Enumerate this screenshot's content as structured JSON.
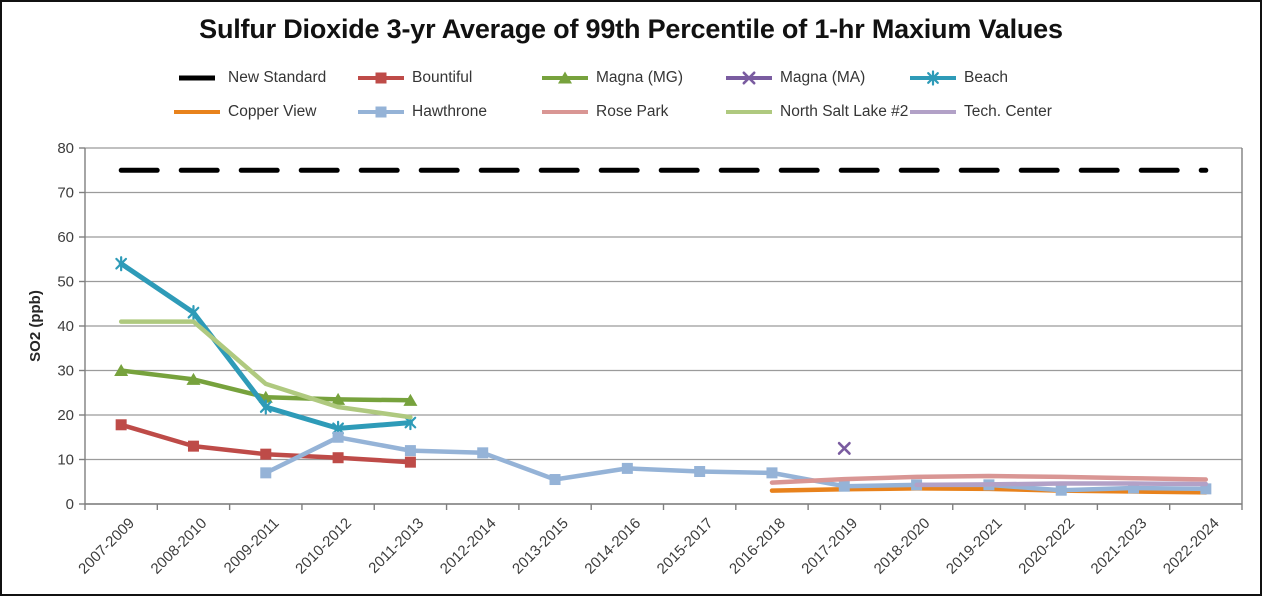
{
  "chart_data": {
    "type": "line",
    "title": "Sulfur Dioxide 3-yr Average of 99th Percentile of 1-hr Maxium Values",
    "xlabel": "",
    "ylabel": "SO2 (ppb)",
    "ylim": [
      0,
      80
    ],
    "ytick_step": 10,
    "grid": true,
    "legend_position": "top",
    "categories": [
      "2007-2009",
      "2008-2010",
      "2009-2011",
      "2010-2012",
      "2011-2013",
      "2012-2014",
      "2013-2015",
      "2014-2016",
      "2015-2017",
      "2016-2018",
      "2017-2019",
      "2018-2020",
      "2019-2021",
      "2020-2022",
      "2021-2023",
      "2022-2024"
    ],
    "series": [
      {
        "name": "New Standard",
        "color": "#000000",
        "marker": "none",
        "width": 5,
        "dash": [
          36,
          24
        ],
        "values": [
          75,
          75,
          75,
          75,
          75,
          75,
          75,
          75,
          75,
          75,
          75,
          75,
          75,
          75,
          75,
          75
        ]
      },
      {
        "name": "Bountiful",
        "color": "#BE4B48",
        "marker": "square",
        "width": 4.5,
        "values": [
          17.8,
          13,
          11.2,
          10.4,
          9.4,
          null,
          null,
          null,
          null,
          null,
          null,
          null,
          null,
          null,
          null,
          null
        ]
      },
      {
        "name": "Magna (MG)",
        "color": "#77A23D",
        "marker": "triangle",
        "width": 4.5,
        "values": [
          30,
          28,
          24,
          23.5,
          23.3,
          null,
          null,
          null,
          null,
          null,
          null,
          null,
          null,
          null,
          null,
          null
        ]
      },
      {
        "name": "Magna (MA)",
        "color": "#7A5CA0",
        "marker": "x",
        "width": 3,
        "values": [
          null,
          null,
          null,
          null,
          null,
          null,
          null,
          null,
          null,
          null,
          12.5,
          null,
          null,
          null,
          null,
          null
        ]
      },
      {
        "name": "Beach",
        "color": "#2E9BB8",
        "marker": "asterisk",
        "width": 5,
        "values": [
          54,
          43,
          21.8,
          17,
          18.3,
          null,
          null,
          null,
          null,
          null,
          null,
          null,
          null,
          null,
          null,
          null
        ]
      },
      {
        "name": "Copper View",
        "color": "#E8821C",
        "marker": "none",
        "width": 4.5,
        "values": [
          null,
          null,
          null,
          null,
          null,
          null,
          null,
          null,
          null,
          3,
          3.3,
          3.5,
          3.4,
          3,
          2.8,
          2.6
        ]
      },
      {
        "name": "Hawthrone",
        "color": "#95B3D7",
        "marker": "square",
        "width": 4.5,
        "values": [
          null,
          null,
          7,
          15,
          12,
          11.5,
          5.5,
          8,
          7.3,
          7,
          4,
          4.3,
          4.3,
          3.1,
          3.6,
          3.4
        ]
      },
      {
        "name": "Rose Park",
        "color": "#D99694",
        "marker": "none",
        "width": 4.5,
        "values": [
          null,
          null,
          null,
          null,
          null,
          null,
          null,
          null,
          null,
          4.8,
          5.6,
          6.1,
          6.3,
          6.1,
          5.8,
          5.5
        ]
      },
      {
        "name": "North Salt Lake #2",
        "color": "#AFC97F",
        "marker": "none",
        "width": 4.5,
        "values": [
          41,
          41,
          27,
          21.8,
          19.5,
          null,
          null,
          null,
          null,
          null,
          null,
          null,
          null,
          null,
          null,
          null
        ]
      },
      {
        "name": "Tech. Center",
        "color": "#B2A1C7",
        "marker": "none",
        "width": 4.5,
        "values": [
          null,
          null,
          null,
          null,
          null,
          null,
          null,
          null,
          null,
          null,
          null,
          4.3,
          4.4,
          4.6,
          4.6,
          4.5
        ]
      }
    ],
    "legend_rows": [
      [
        "New Standard",
        "Bountiful",
        "Magna (MG)",
        "Magna (MA)",
        "Beach"
      ],
      [
        "Copper View",
        "Hawthrone",
        "Rose Park",
        "North Salt Lake #2",
        "Tech. Center"
      ]
    ]
  }
}
